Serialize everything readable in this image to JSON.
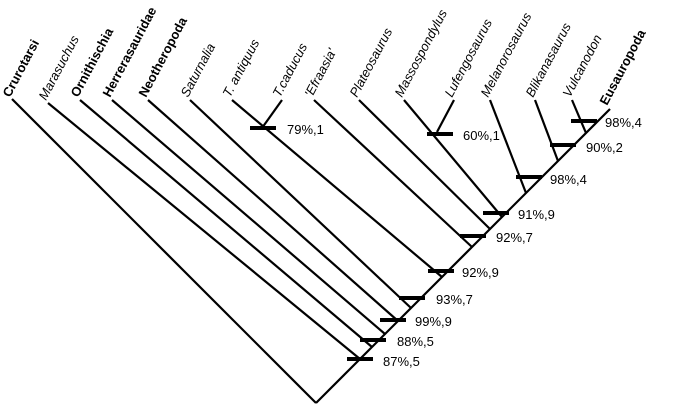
{
  "taxa": [
    {
      "label": "Crurotarsi",
      "style": "bold"
    },
    {
      "label": "Marasuchus",
      "style": "italic"
    },
    {
      "label": "Ornithischia",
      "style": "bold"
    },
    {
      "label": "Herrerasauridae",
      "style": "bold"
    },
    {
      "label": "Neotheropoda",
      "style": "bold"
    },
    {
      "label": "Saturnalia",
      "style": "italic"
    },
    {
      "label": "T. antiquus",
      "style": "italic"
    },
    {
      "label": "T.caducus",
      "style": "italic"
    },
    {
      "label": "'Efraasia'",
      "style": "italic"
    },
    {
      "label": "Plateosaurus",
      "style": "italic"
    },
    {
      "label": "Massospondylus",
      "style": "italic"
    },
    {
      "label": "Lufengosaurus",
      "style": "italic"
    },
    {
      "label": "Melanorosaurus",
      "style": "italic"
    },
    {
      "label": "Blikanasaurus",
      "style": "italic"
    },
    {
      "label": "Vulcanodon",
      "style": "italic"
    },
    {
      "label": "Eusauropoda",
      "style": "bold"
    }
  ],
  "supports": [
    {
      "label": "87%,5"
    },
    {
      "label": "88%,5"
    },
    {
      "label": "99%,9"
    },
    {
      "label": "93%,7"
    },
    {
      "label": "92%,9"
    },
    {
      "label": "92%,7"
    },
    {
      "label": "91%,9"
    },
    {
      "label": "98%,4"
    },
    {
      "label": "90%,2"
    },
    {
      "label": "98%,4"
    },
    {
      "label": "79%,1"
    },
    {
      "label": "60%,1"
    }
  ]
}
